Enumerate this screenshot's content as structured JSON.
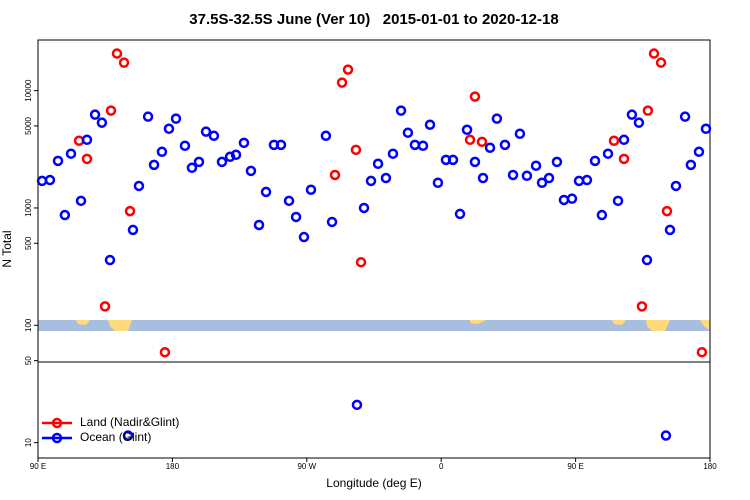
{
  "chart_data": {
    "type": "scatter",
    "title": "37.5S-32.5S June (Ver 10)   2015-01-01 to 2020-12-18",
    "x_label": "Longitude (deg E)",
    "y_label": "N Total",
    "xlim": [
      90,
      540
    ],
    "xticks": [
      {
        "value": 90,
        "label": "90 E"
      },
      {
        "value": 180,
        "label": "180"
      },
      {
        "value": 270,
        "label": "90 W"
      },
      {
        "value": 360,
        "label": "0"
      },
      {
        "value": 450,
        "label": "90 E"
      },
      {
        "value": 540,
        "label": "180"
      }
    ],
    "ylim": [
      7.4,
      27000
    ],
    "ylog": true,
    "yticks": [
      10,
      50,
      100,
      500,
      1000,
      5000,
      10000
    ],
    "legend": "bottom-left",
    "series": [
      {
        "name": "Land (Nadir&Glint)",
        "color": "#ff0000",
        "x": [
          117.5,
          122.8,
          134.9,
          138.9,
          142.9,
          147.6,
          151.6,
          175.0,
          288.9,
          293.6,
          297.6,
          302.9,
          306.3,
          379.3,
          382.6,
          387.3,
          475.7,
          482.4,
          494.4,
          498.4,
          502.5,
          507.2,
          511.2,
          534.6
        ],
        "values": [
          3740,
          2620,
          145,
          6750,
          20700,
          17300,
          940,
          59,
          1910,
          11700,
          15100,
          3130,
          345,
          3810,
          8890,
          3660,
          3740,
          2620,
          145,
          6750,
          20700,
          17300,
          940,
          59
        ]
      },
      {
        "name": "Ocean (Glint)",
        "color": "#0000ff",
        "x": [
          92.7,
          98.0,
          103.4,
          108.0,
          112.1,
          118.8,
          122.8,
          128.2,
          132.8,
          138.2,
          150.3,
          153.6,
          157.6,
          163.7,
          167.7,
          173.0,
          177.7,
          182.4,
          188.4,
          193.1,
          197.8,
          202.5,
          207.8,
          213.2,
          218.6,
          222.6,
          227.9,
          232.6,
          238.0,
          242.7,
          248.0,
          252.7,
          258.1,
          262.8,
          268.1,
          272.8,
          282.8,
          286.9,
          303.6,
          308.3,
          313.0,
          317.7,
          323.0,
          327.7,
          333.1,
          337.7,
          342.4,
          347.8,
          352.5,
          357.8,
          363.2,
          367.9,
          372.6,
          377.3,
          382.6,
          388.0,
          392.7,
          397.3,
          402.7,
          408.1,
          412.7,
          417.4,
          423.5,
          427.5,
          432.2,
          437.5,
          442.2,
          447.6,
          452.3,
          457.6,
          463.0,
          467.6,
          471.7,
          478.4,
          482.4,
          487.7,
          492.4,
          497.8,
          510.5,
          513.2,
          517.2,
          523.3,
          527.2,
          532.6,
          537.3
        ],
        "values": [
          1700,
          1730,
          2520,
          870,
          2900,
          1150,
          3810,
          6240,
          5330,
          360,
          11.5,
          650,
          1540,
          6000,
          2330,
          3010,
          4730,
          5770,
          3390,
          2200,
          2470,
          4470,
          4120,
          2470,
          2730,
          2840,
          3590,
          2070,
          716,
          1370,
          3450,
          3450,
          1150,
          838,
          565,
          1430,
          4120,
          760,
          21,
          1000,
          1700,
          2380,
          1800,
          2900,
          6750,
          4380,
          3450,
          3390,
          5120,
          1640,
          2570,
          2570,
          890,
          4640,
          2470,
          1800,
          3260,
          5770,
          3450,
          1910,
          4290,
          1880,
          2290,
          1640,
          1800,
          2470,
          1170,
          1200,
          1700,
          1730,
          2520,
          870,
          2900,
          1150,
          3810,
          6240,
          5330,
          360,
          11.5,
          650,
          1540,
          6000,
          2330,
          3010,
          4730
        ]
      }
    ]
  }
}
